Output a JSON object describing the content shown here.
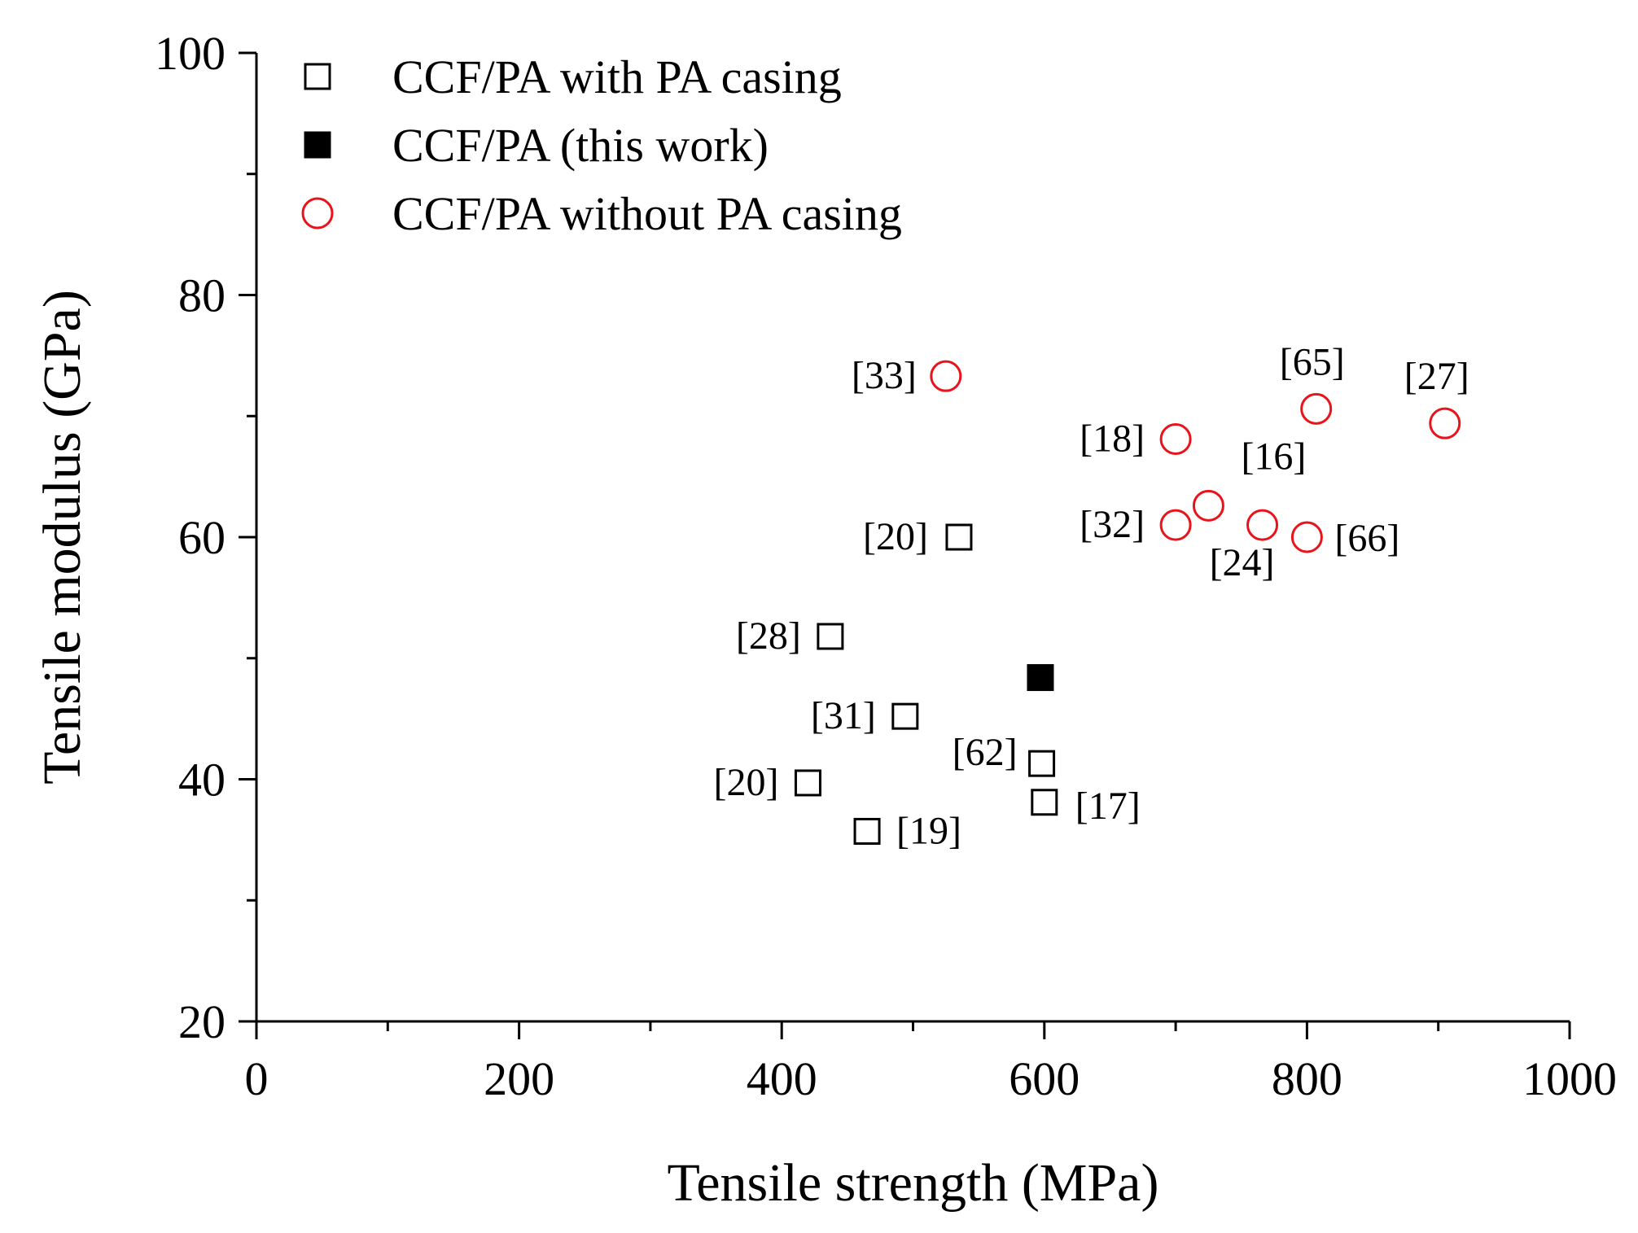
{
  "chart_data": {
    "type": "scatter",
    "xlabel": "Tensile strength (MPa)",
    "ylabel": "Tensile modulus (GPa)",
    "xlim": [
      0,
      1000
    ],
    "ylim": [
      20,
      100
    ],
    "x_ticks": [
      "0",
      "200",
      "400",
      "600",
      "800",
      "1000"
    ],
    "y_ticks": [
      "20",
      "40",
      "60",
      "80",
      "100"
    ],
    "grid": false,
    "legend_position": "top-left",
    "series": [
      {
        "name": "CCF/PA with PA casing",
        "marker": "open-square",
        "color": "#000000",
        "points": [
          {
            "x": 535,
            "y": 60,
            "label": "[20]"
          },
          {
            "x": 437,
            "y": 51.8,
            "label": "[28]"
          },
          {
            "x": 494,
            "y": 45.2,
            "label": "[31]"
          },
          {
            "x": 420,
            "y": 39.7,
            "label": "[20]"
          },
          {
            "x": 465,
            "y": 35.7,
            "label": "[19]"
          },
          {
            "x": 598,
            "y": 41.3,
            "label": "[62]"
          },
          {
            "x": 600,
            "y": 38.1,
            "label": "[17]"
          }
        ]
      },
      {
        "name": "CCF/PA (this work)",
        "marker": "filled-square",
        "color": "#000000",
        "points": [
          {
            "x": 597,
            "y": 48.4,
            "label": ""
          }
        ]
      },
      {
        "name": "CCF/PA without PA casing",
        "marker": "open-circle",
        "color": "#e8141c",
        "points": [
          {
            "x": 525,
            "y": 73.3,
            "label": "[33]"
          },
          {
            "x": 807,
            "y": 70.6,
            "label": "[65]"
          },
          {
            "x": 905,
            "y": 69.4,
            "label": "[27]"
          },
          {
            "x": 700,
            "y": 68.1,
            "label": "[18]"
          },
          {
            "x": 725,
            "y": 62.6,
            "label": "[16]"
          },
          {
            "x": 700,
            "y": 61,
            "label": "[32]"
          },
          {
            "x": 766,
            "y": 61,
            "label": "[24]"
          },
          {
            "x": 800,
            "y": 60,
            "label": "[66]"
          }
        ]
      }
    ]
  }
}
